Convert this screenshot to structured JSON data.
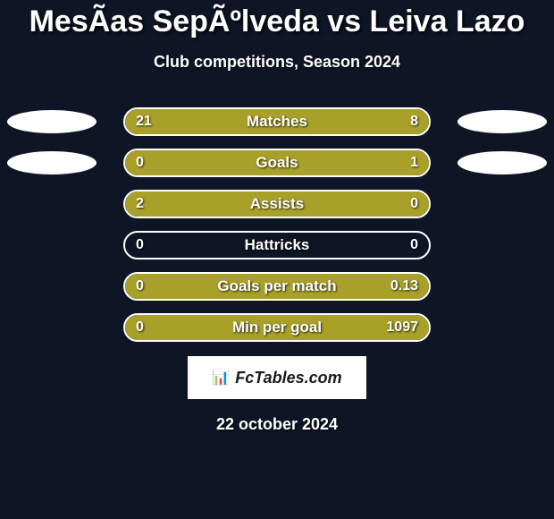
{
  "title": "MesÃ­as SepÃºlveda vs Leiva Lazo",
  "subtitle": "Club competitions, Season 2024",
  "date": "22 october 2024",
  "logo_text": "FcTables.com",
  "background_color": "#0e1525",
  "bar_fill_color": "#a8a029",
  "bar_border_color": "#ffffff",
  "text_color": "#ffffff",
  "badge_color": "#ffffff",
  "stats": [
    {
      "label": "Matches",
      "left_value": "21",
      "right_value": "8",
      "left_pct": 72,
      "right_pct": 28,
      "show_badges": true
    },
    {
      "label": "Goals",
      "left_value": "0",
      "right_value": "1",
      "left_pct": 0,
      "right_pct": 100,
      "show_badges": true
    },
    {
      "label": "Assists",
      "left_value": "2",
      "right_value": "0",
      "left_pct": 100,
      "right_pct": 0,
      "show_badges": false
    },
    {
      "label": "Hattricks",
      "left_value": "0",
      "right_value": "0",
      "left_pct": 0,
      "right_pct": 0,
      "show_badges": false
    },
    {
      "label": "Goals per match",
      "left_value": "0",
      "right_value": "0.13",
      "left_pct": 0,
      "right_pct": 100,
      "show_badges": false
    },
    {
      "label": "Min per goal",
      "left_value": "0",
      "right_value": "1097",
      "left_pct": 0,
      "right_pct": 100,
      "show_badges": false
    }
  ]
}
